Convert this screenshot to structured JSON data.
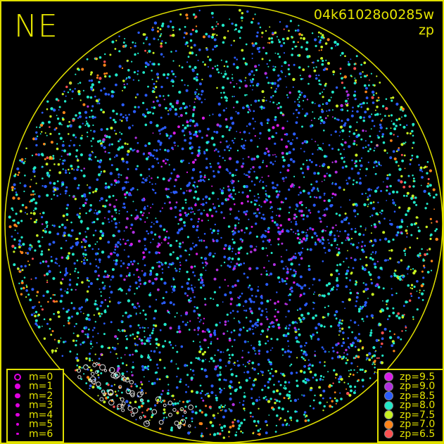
{
  "header": {
    "direction": "NE",
    "frame_id": "04k61028o0285w",
    "mode": "zp"
  },
  "colors": {
    "frame": "#e0e000",
    "horizon": "#e0e000",
    "background": "#000000"
  },
  "chart_data": {
    "type": "scatter",
    "title": "04k61028o0285w",
    "subtitle": "zp",
    "corner_label": "NE",
    "size_legend": {
      "position": "bottom-left",
      "entries": [
        {
          "label": "m=0",
          "size": 5
        },
        {
          "label": "m=1",
          "size": 4
        },
        {
          "label": "m=2",
          "size": 3.6
        },
        {
          "label": "m=3",
          "size": 3.2
        },
        {
          "label": "m=4",
          "size": 2.6
        },
        {
          "label": "m=5",
          "size": 2.2
        },
        {
          "label": "m=6",
          "size": 1.6
        }
      ],
      "color": "#e000e0"
    },
    "color_legend": {
      "position": "bottom-right",
      "entries": [
        {
          "label": "zp=9.5",
          "value": 9.5,
          "color": "#d81ce8"
        },
        {
          "label": "zp=9.0",
          "value": 9.0,
          "color": "#b030e0"
        },
        {
          "label": "zp=8.5",
          "value": 8.5,
          "color": "#2a5cff"
        },
        {
          "label": "zp=8.0",
          "value": 8.0,
          "color": "#20e8c8"
        },
        {
          "label": "zp=7.5",
          "value": 7.5,
          "color": "#c8f020"
        },
        {
          "label": "zp=7.0",
          "value": 7.0,
          "color": "#ff8418"
        },
        {
          "label": "zp=6.5",
          "value": 6.5,
          "color": "#ff5050"
        }
      ]
    },
    "grid": false
  }
}
